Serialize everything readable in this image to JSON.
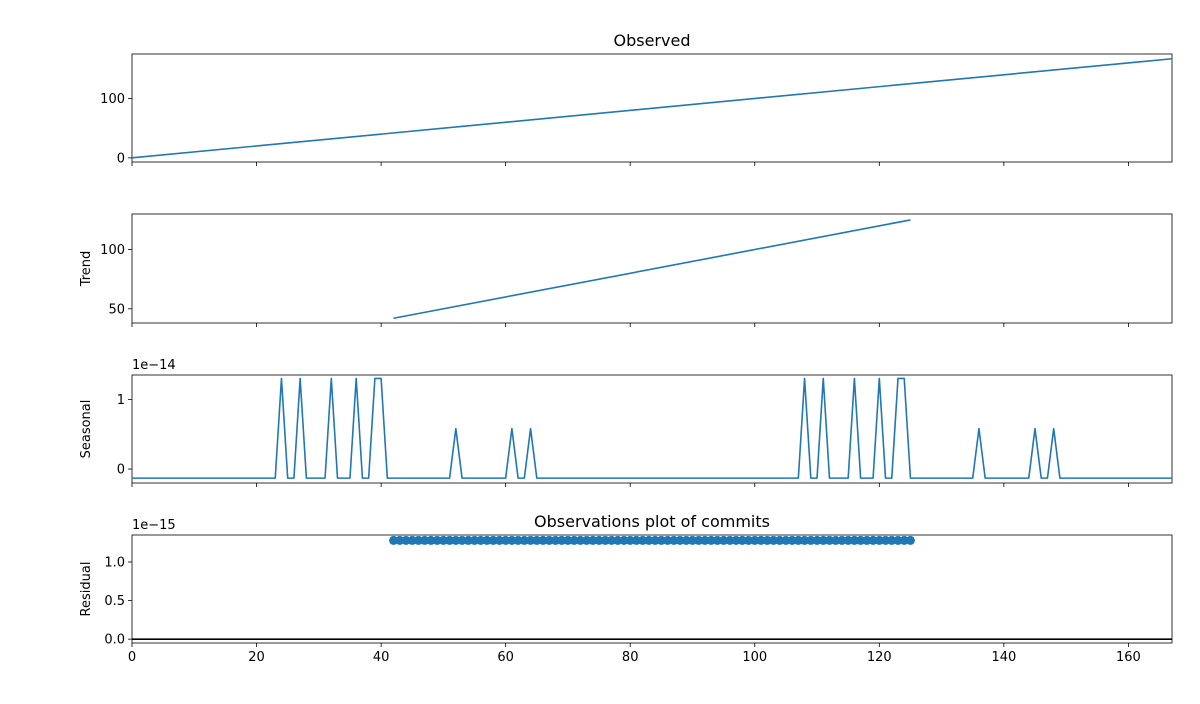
{
  "chart_data": [
    {
      "type": "line",
      "title": "Observed",
      "xlabel": "",
      "ylabel": "",
      "xlim": [
        0,
        167
      ],
      "ylim": [
        -7,
        175
      ],
      "yticks": [
        0,
        100
      ],
      "ytick_labels": [
        "0",
        "100"
      ],
      "series": [
        {
          "x": [
            0,
            167
          ],
          "y": [
            0,
            167
          ]
        }
      ],
      "color": "#1f77b4"
    },
    {
      "type": "line",
      "title": "",
      "xlabel": "",
      "ylabel": "Trend",
      "xlim": [
        0,
        167
      ],
      "ylim": [
        38,
        130
      ],
      "yticks": [
        50,
        100
      ],
      "ytick_labels": [
        "50",
        "100"
      ],
      "series": [
        {
          "x": [
            42,
            125
          ],
          "y": [
            42,
            125
          ]
        }
      ],
      "color": "#1f77b4"
    },
    {
      "type": "line",
      "title": "",
      "xlabel": "",
      "ylabel": "Seasonal",
      "xlim": [
        0,
        167
      ],
      "ylim": [
        -0.2,
        1.35
      ],
      "yticks": [
        0,
        1
      ],
      "ytick_labels": [
        "0",
        "1"
      ],
      "offset_label": "1e−14",
      "series": [
        {
          "x": [
            0,
            23,
            24,
            25,
            26,
            27,
            28,
            31,
            32,
            33,
            35,
            36,
            37,
            38,
            39,
            40,
            41,
            51,
            52,
            53,
            60,
            61,
            62,
            63,
            64,
            65,
            107,
            108,
            109,
            110,
            111,
            112,
            115,
            116,
            117,
            119,
            120,
            121,
            122,
            123,
            124,
            125,
            135,
            136,
            137,
            144,
            145,
            146,
            147,
            148,
            149,
            167
          ],
          "y": [
            -0.13,
            -0.13,
            1.3,
            -0.13,
            -0.13,
            1.3,
            -0.13,
            -0.13,
            1.3,
            -0.13,
            -0.13,
            1.3,
            -0.13,
            -0.13,
            1.3,
            1.3,
            -0.13,
            -0.13,
            0.58,
            -0.13,
            -0.13,
            0.58,
            -0.13,
            -0.13,
            0.58,
            -0.13,
            -0.13,
            1.3,
            -0.13,
            -0.13,
            1.3,
            -0.13,
            -0.13,
            1.3,
            -0.13,
            -0.13,
            1.3,
            -0.13,
            -0.13,
            1.3,
            1.3,
            -0.13,
            -0.13,
            0.58,
            -0.13,
            -0.13,
            0.58,
            -0.13,
            -0.13,
            0.58,
            -0.13,
            -0.13
          ]
        }
      ],
      "color": "#1f77b4"
    },
    {
      "type": "scatter",
      "title": "Observations plot of commits",
      "xlabel": "",
      "ylabel": "Residual",
      "xlim": [
        0,
        167
      ],
      "ylim": [
        -0.05,
        1.35
      ],
      "yticks": [
        0,
        0.5,
        1
      ],
      "ytick_labels": [
        "0.0",
        "0.5",
        "1.0"
      ],
      "xticks": [
        0,
        20,
        40,
        60,
        80,
        100,
        120,
        140,
        160
      ],
      "xtick_labels": [
        "0",
        "20",
        "40",
        "60",
        "80",
        "100",
        "120",
        "140",
        "160"
      ],
      "offset_label": "1e−15",
      "series": [
        {
          "x_start": 42,
          "x_end": 125,
          "y": 1.28
        }
      ],
      "baseline": 0,
      "color": "#1f77b4"
    }
  ]
}
